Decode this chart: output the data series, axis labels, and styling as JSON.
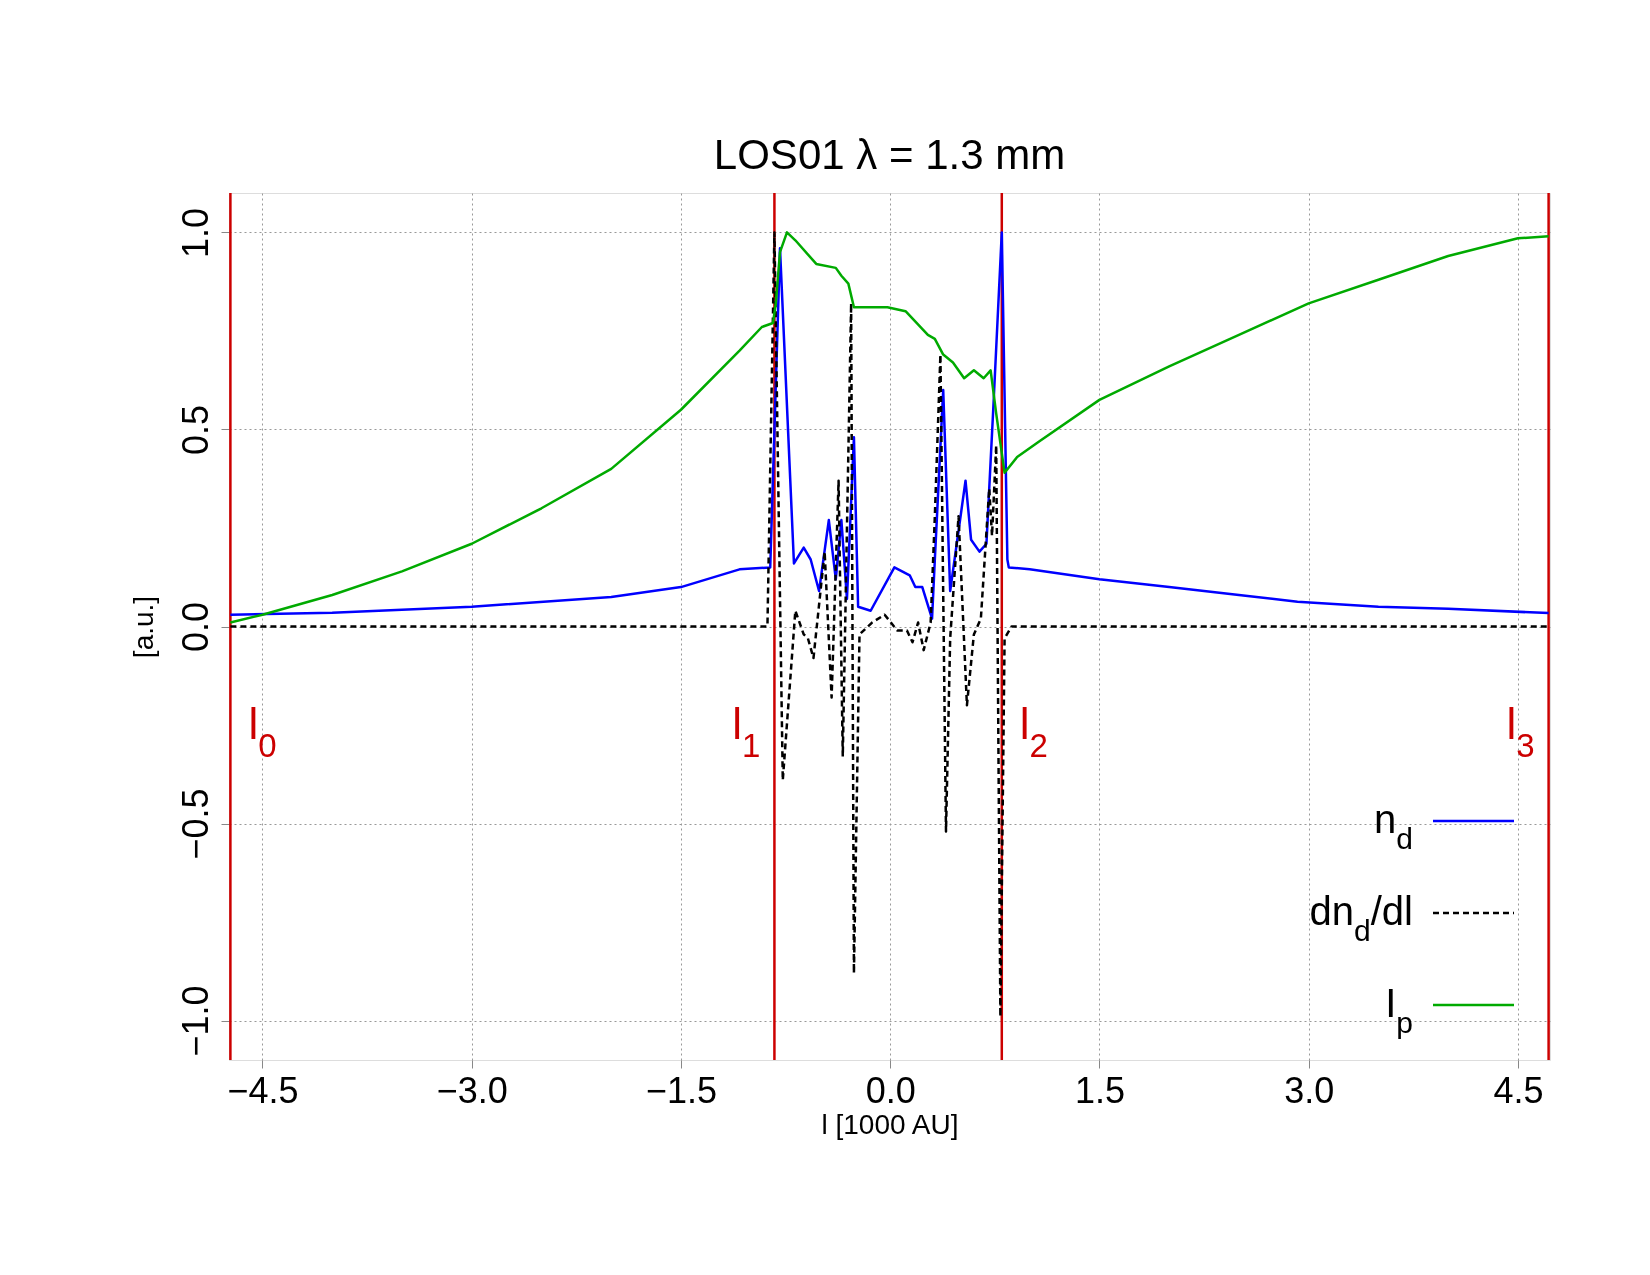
{
  "chart_data": {
    "type": "line",
    "title": "LOS01 λ = 1.3 mm",
    "xlabel": "l [1000 AU]",
    "ylabel": "[a.u.]",
    "xlim": [
      -4.74,
      4.73
    ],
    "ylim": [
      -1.1,
      1.1
    ],
    "xticks": [
      {
        "value": -4.5,
        "label": "−4.5"
      },
      {
        "value": -3.0,
        "label": "−3.0"
      },
      {
        "value": -1.5,
        "label": "−1.5"
      },
      {
        "value": 0,
        "label": "0.0"
      },
      {
        "value": 1.5,
        "label": "1.5"
      },
      {
        "value": 3.0,
        "label": "3.0"
      },
      {
        "value": 4.5,
        "label": "4.5"
      }
    ],
    "yticks": [
      {
        "value": -1,
        "label": "−1.0"
      },
      {
        "value": -0.5,
        "label": "−0.5"
      },
      {
        "value": 0,
        "label": "0.0"
      },
      {
        "value": 0.5,
        "label": "0.5"
      },
      {
        "value": 1,
        "label": "1.0"
      }
    ],
    "grid": true,
    "legend": "bottom right",
    "series": [
      {
        "name": "n$_{d}$",
        "color": "#0000ff",
        "line_style": "solid",
        "x": [
          -4.73,
          -4.0,
          -3.0,
          -2.0,
          -1.5,
          -1.08,
          -0.86,
          -0.79,
          -0.69,
          -0.62,
          -0.57,
          -0.51,
          -0.44,
          -0.39,
          -0.35,
          -0.31,
          -0.26,
          -0.23,
          -0.14,
          0.03,
          0.14,
          0.18,
          0.23,
          0.3,
          0.32,
          0.38,
          0.43,
          0.54,
          0.58,
          0.64,
          0.69,
          0.74,
          0.8,
          0.84,
          0.85,
          1.0,
          1.5,
          2.0,
          2.5,
          2.92,
          3.5,
          4.0,
          4.72
        ],
        "values": [
          0.03,
          0.035,
          0.05,
          0.075,
          0.1,
          0.145,
          0.15,
          0.96,
          0.16,
          0.2,
          0.17,
          0.09,
          0.27,
          0.12,
          0.27,
          0.07,
          0.48,
          0.05,
          0.04,
          0.15,
          0.13,
          0.1,
          0.1,
          0.02,
          0.17,
          0.6,
          0.09,
          0.37,
          0.22,
          0.19,
          0.21,
          0.56,
          1.0,
          0.17,
          0.15,
          0.145,
          0.12,
          0.1,
          0.08,
          0.063,
          0.05,
          0.045,
          0.034
        ]
      },
      {
        "name": "dn$_{d}$/dl",
        "color": "#000000",
        "line_style": "dashed",
        "x": [
          -4.73,
          -0.88,
          -0.83,
          -0.77,
          -0.68,
          -0.62,
          -0.59,
          -0.55,
          -0.47,
          -0.42,
          -0.37,
          -0.34,
          -0.31,
          -0.28,
          -0.26,
          -0.22,
          -0.13,
          -0.04,
          0.05,
          0.12,
          0.16,
          0.2,
          0.24,
          0.29,
          0.32,
          0.36,
          0.4,
          0.43,
          0.49,
          0.55,
          0.6,
          0.65,
          0.71,
          0.73,
          0.76,
          0.79,
          0.82,
          0.87,
          4.72
        ],
        "values": [
          0.0,
          0.0,
          1.0,
          -0.39,
          0.04,
          -0.02,
          -0.03,
          -0.08,
          0.19,
          -0.18,
          0.37,
          -0.33,
          0.25,
          0.82,
          -0.88,
          -0.02,
          0.01,
          0.03,
          -0.01,
          -0.01,
          -0.04,
          0.01,
          -0.06,
          0.01,
          0.28,
          0.69,
          -0.52,
          -0.03,
          0.28,
          -0.2,
          -0.02,
          0.02,
          0.35,
          0.23,
          0.46,
          -0.99,
          -0.03,
          0.0,
          0.0
        ]
      },
      {
        "name": "I$_{p}$",
        "color": "#00aa00",
        "line_style": "solid",
        "x": [
          -4.73,
          -4.5,
          -4.0,
          -3.5,
          -3.0,
          -2.5,
          -2.0,
          -1.5,
          -1.08,
          -0.92,
          -0.84,
          -0.82,
          -0.79,
          -0.74,
          -0.68,
          -0.53,
          -0.39,
          -0.35,
          -0.3,
          -0.26,
          -0.02,
          0.11,
          0.27,
          0.32,
          0.38,
          0.45,
          0.53,
          0.6,
          0.67,
          0.72,
          0.76,
          0.82,
          0.91,
          1.07,
          1.5,
          2.0,
          2.5,
          3.0,
          3.5,
          4.0,
          4.5,
          4.72
        ],
        "values": [
          0.01,
          0.03,
          0.08,
          0.14,
          0.21,
          0.3,
          0.4,
          0.55,
          0.7,
          0.76,
          0.77,
          0.82,
          0.95,
          1.0,
          0.98,
          0.92,
          0.91,
          0.89,
          0.87,
          0.81,
          0.81,
          0.8,
          0.74,
          0.73,
          0.69,
          0.67,
          0.63,
          0.65,
          0.63,
          0.65,
          0.54,
          0.39,
          0.43,
          0.47,
          0.575,
          0.66,
          0.74,
          0.82,
          0.88,
          0.94,
          0.985,
          0.99
        ]
      }
    ],
    "ref_lines": [
      {
        "axis": "x",
        "value": -4.73,
        "color": "#cc0000",
        "label": "l$_{0}$"
      },
      {
        "axis": "x",
        "value": -0.83,
        "color": "#cc0000",
        "label": "l$_{1}$"
      },
      {
        "axis": "x",
        "value": 0.8,
        "color": "#cc0000",
        "label": "l$_{2}$"
      },
      {
        "axis": "x",
        "value": 4.72,
        "color": "#cc0000",
        "label": "l$_{3}$"
      }
    ]
  }
}
